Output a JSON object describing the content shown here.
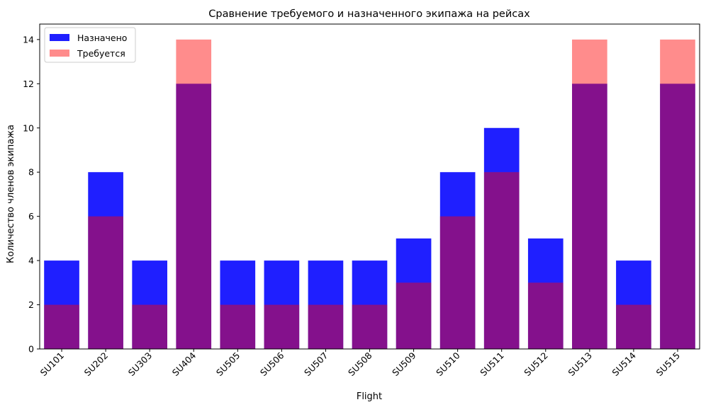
{
  "chart_data": {
    "type": "bar",
    "title": "Сравнение требуемого и назначенного экипажа на рейсах",
    "xlabel": "Flight",
    "ylabel": "Количество членов экипажа",
    "categories": [
      "SU101",
      "SU202",
      "SU303",
      "SU404",
      "SU505",
      "SU506",
      "SU507",
      "SU508",
      "SU509",
      "SU510",
      "SU511",
      "SU512",
      "SU513",
      "SU514",
      "SU515"
    ],
    "series": [
      {
        "name": "Назначено",
        "color": "#0000ff",
        "opacity": 0.88,
        "values": [
          4,
          8,
          4,
          12,
          4,
          4,
          4,
          4,
          5,
          8,
          10,
          5,
          12,
          4,
          12
        ]
      },
      {
        "name": "Требуется",
        "color": "#ff0000",
        "opacity": 0.45,
        "values": [
          2,
          6,
          2,
          14,
          2,
          2,
          2,
          2,
          3,
          6,
          8,
          3,
          14,
          2,
          14
        ]
      }
    ],
    "ylim": [
      0,
      14.7
    ],
    "yticks": [
      0,
      2,
      4,
      6,
      8,
      10,
      12,
      14
    ],
    "grid": false,
    "legend": "top-left"
  }
}
